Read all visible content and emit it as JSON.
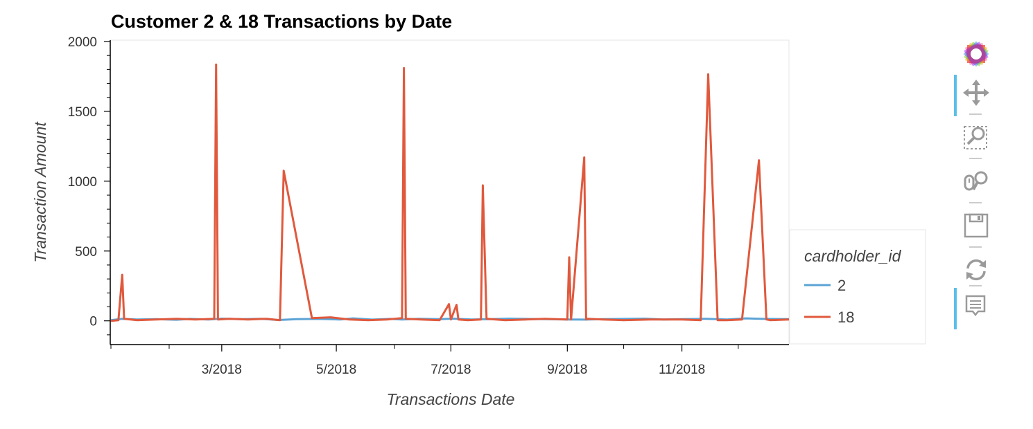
{
  "chart_data": {
    "type": "line",
    "title": "Customer 2 & 18 Transactions by Date",
    "xlabel": "Transactions Date",
    "ylabel": "Transaction Amount",
    "x_ticks": [
      "3/2018",
      "5/2018",
      "7/2018",
      "9/2018",
      "11/2018"
    ],
    "y_ticks": [
      0,
      500,
      1000,
      1500,
      2000
    ],
    "ylim": [
      -170,
      2010
    ],
    "xlim": [
      "2018-01-01",
      "2018-12-28"
    ],
    "legend": {
      "title": "cardholder_id",
      "placement": "right"
    },
    "series": [
      {
        "name": "2",
        "color": "#5ba3d5",
        "x": [
          "2018-01-01",
          "2018-01-07",
          "2018-01-15",
          "2018-01-25",
          "2018-02-05",
          "2018-02-12",
          "2018-02-22",
          "2018-03-01",
          "2018-03-12",
          "2018-03-22",
          "2018-03-31",
          "2018-04-10",
          "2018-04-22",
          "2018-05-03",
          "2018-05-10",
          "2018-05-20",
          "2018-05-30",
          "2018-06-05",
          "2018-06-14",
          "2018-06-25",
          "2018-07-02",
          "2018-07-12",
          "2018-07-22",
          "2018-08-01",
          "2018-08-10",
          "2018-08-20",
          "2018-09-01",
          "2018-09-10",
          "2018-09-20",
          "2018-10-01",
          "2018-10-12",
          "2018-10-22",
          "2018-11-01",
          "2018-11-14",
          "2018-11-25",
          "2018-12-05",
          "2018-12-15",
          "2018-12-28"
        ],
        "values": [
          5,
          15,
          10,
          12,
          8,
          14,
          10,
          16,
          12,
          15,
          6,
          12,
          14,
          10,
          18,
          9,
          14,
          10,
          15,
          12,
          16,
          10,
          12,
          16,
          14,
          12,
          10,
          9,
          12,
          14,
          16,
          10,
          12,
          15,
          10,
          18,
          14,
          12
        ]
      },
      {
        "name": "18",
        "color": "#e0593d",
        "x": [
          "2018-01-01",
          "2018-01-05",
          "2018-01-07",
          "2018-01-08",
          "2018-01-15",
          "2018-01-25",
          "2018-02-05",
          "2018-02-15",
          "2018-02-25",
          "2018-02-26",
          "2018-02-27",
          "2018-03-05",
          "2018-03-15",
          "2018-03-25",
          "2018-04-01",
          "2018-04-03",
          "2018-04-18",
          "2018-04-28",
          "2018-05-08",
          "2018-05-18",
          "2018-05-28",
          "2018-06-05",
          "2018-06-06",
          "2018-06-07",
          "2018-06-15",
          "2018-06-25",
          "2018-06-30",
          "2018-07-01",
          "2018-07-04",
          "2018-07-05",
          "2018-07-10",
          "2018-07-17",
          "2018-07-18",
          "2018-07-20",
          "2018-07-30",
          "2018-08-10",
          "2018-08-20",
          "2018-09-01",
          "2018-09-02",
          "2018-09-03",
          "2018-09-10",
          "2018-09-11",
          "2018-09-12",
          "2018-09-20",
          "2018-10-01",
          "2018-10-15",
          "2018-11-01",
          "2018-11-11",
          "2018-11-15",
          "2018-11-20",
          "2018-11-25",
          "2018-12-03",
          "2018-12-12",
          "2018-12-16",
          "2018-12-18",
          "2018-12-28"
        ],
        "values": [
          0,
          5,
          330,
          15,
          5,
          10,
          15,
          10,
          15,
          1835,
          10,
          15,
          10,
          15,
          5,
          1075,
          20,
          25,
          10,
          5,
          10,
          20,
          1810,
          15,
          10,
          5,
          120,
          10,
          115,
          10,
          5,
          10,
          970,
          15,
          5,
          10,
          15,
          10,
          455,
          10,
          1170,
          10,
          15,
          10,
          5,
          10,
          10,
          5,
          1765,
          5,
          5,
          10,
          1150,
          10,
          5,
          10
        ]
      }
    ]
  },
  "toolbar": {
    "tools": [
      "bokeh-logo-icon",
      "pan-icon",
      "box-zoom-icon",
      "wheel-zoom-icon",
      "save-icon",
      "reset-icon",
      "hover-icon"
    ]
  }
}
